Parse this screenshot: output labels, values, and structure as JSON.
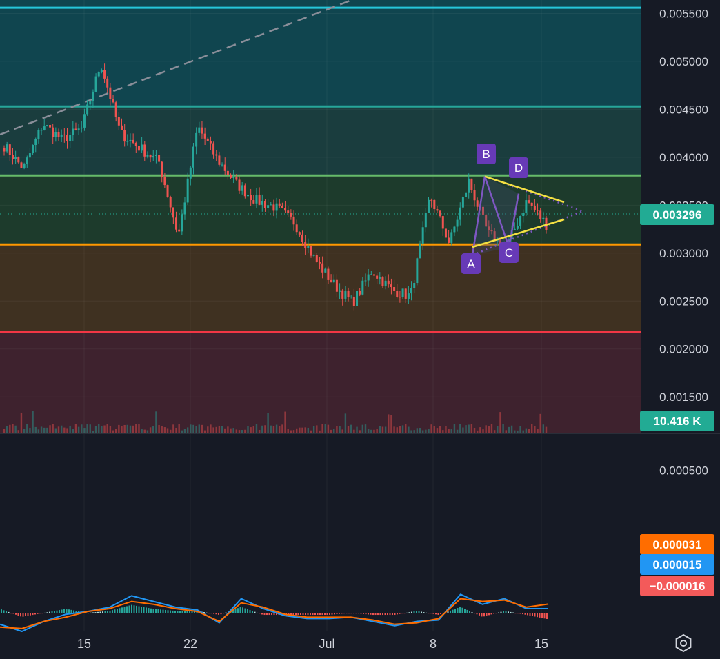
{
  "chart_data": [
    {
      "type": "candlestick",
      "title": "",
      "y_scale": "linear",
      "ylim": [
        0.00112,
        0.00564
      ],
      "y_ticks": [
        "0.005500",
        "0.005000",
        "0.004500",
        "0.004000",
        "0.003500",
        "0.003000",
        "0.002500",
        "0.002000",
        "0.001500"
      ],
      "x_ticks": [
        "15",
        "22",
        "Jul",
        "8",
        "15"
      ],
      "current_price": "0.003296",
      "volume_label": "10.416 K",
      "horizontal_levels": [
        {
          "price": 0.00556,
          "color": "#26c6da"
        },
        {
          "price": 0.00453,
          "color": "#26a69a"
        },
        {
          "price": 0.00381,
          "color": "#66bb6a"
        },
        {
          "price": 0.00309,
          "color": "#ff9800"
        },
        {
          "price": 0.00218,
          "color": "#f23645"
        }
      ],
      "zones": [
        {
          "from": 0.00453,
          "to": 0.00564,
          "color": "#10454f"
        },
        {
          "from": 0.00381,
          "to": 0.00453,
          "color": "#1a3d3e"
        },
        {
          "from": 0.00309,
          "to": 0.00381,
          "color": "#1d3b2c"
        },
        {
          "from": 0.00218,
          "to": 0.00309,
          "color": "#3f3121"
        },
        {
          "from": 0.00112,
          "to": 0.00218,
          "color": "#3e222e"
        }
      ],
      "pattern_points": [
        {
          "label": "A",
          "price": 0.00298
        },
        {
          "label": "B",
          "price": 0.0038
        },
        {
          "label": "C",
          "price": 0.00306
        },
        {
          "label": "D",
          "price": 0.00362
        }
      ],
      "series": [
        {
          "name": "price",
          "key_prices": [
            0.00412,
            0.00388,
            0.00435,
            0.00418,
            0.0043,
            0.00498,
            0.00425,
            0.0041,
            0.00395,
            0.00318,
            0.00432,
            0.00398,
            0.00372,
            0.00355,
            0.00348,
            0.00332,
            0.00295,
            0.00268,
            0.00248,
            0.00282,
            0.00262,
            0.00255,
            0.0036,
            0.0031,
            0.00375,
            0.0032,
            0.00308,
            0.00355,
            0.0033
          ]
        }
      ]
    },
    {
      "type": "line",
      "title": "",
      "ylim": [
        -6.5e-05,
        0.00063
      ],
      "y_ticks": [
        "0.000500"
      ],
      "value_labels": [
        {
          "text": "0.000031",
          "color": "#ff6d00"
        },
        {
          "text": "0.000015",
          "color": "#2196f3"
        },
        {
          "text": "−0.000016",
          "color": "#f35a5a"
        }
      ],
      "series": [
        {
          "name": "macd",
          "color": "#2196f3",
          "values": [
            -4e-05,
            -6.5e-05,
            -3e-05,
            -5e-06,
            5e-06,
            2e-05,
            6e-05,
            4e-05,
            2e-05,
            1e-05,
            -3.5e-05,
            5e-05,
            1.5e-05,
            -1e-05,
            -2e-05,
            -2e-05,
            -1.5e-05,
            -3e-05,
            -4.5e-05,
            -3e-05,
            -2.5e-05,
            6.5e-05,
            3e-05,
            5e-05,
            1.5e-05,
            1.5e-05
          ]
        },
        {
          "name": "signal",
          "color": "#ff6d00",
          "values": [
            -5e-05,
            -5.5e-05,
            -3e-05,
            -1.5e-05,
            5e-06,
            1.5e-05,
            4e-05,
            3e-05,
            1.5e-05,
            5e-06,
            -3e-05,
            3.5e-05,
            2e-05,
            -5e-06,
            -1.5e-05,
            -1.5e-05,
            -1.5e-05,
            -2.5e-05,
            -4e-05,
            -3.5e-05,
            -2e-05,
            5e-05,
            4e-05,
            4.5e-05,
            2e-05,
            3.1e-05
          ]
        }
      ]
    }
  ]
}
